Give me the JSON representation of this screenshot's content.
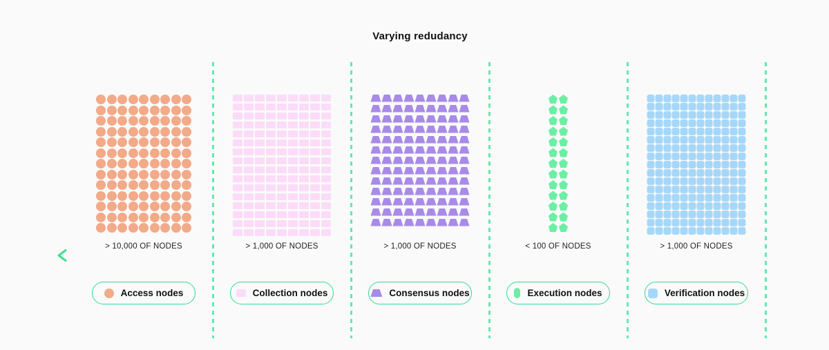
{
  "title": "Varying redudancy",
  "colors": {
    "background": "#FAFAFA",
    "separator": "#62E9AE",
    "pill_border": "#2EDC90",
    "arrow_start": "#3EE08F",
    "arrow_end": "#0A8A55",
    "access": "#F2AA89",
    "collection": "#FBDCF8",
    "consensus": "#A88BE8",
    "execution": "#6CEEA4",
    "verification": "#A6D7F8"
  },
  "groups": [
    {
      "id": "access",
      "legend_label": "Access nodes",
      "count_label": "> 10,000 OF NODES",
      "shape": "circle",
      "cols": 9,
      "rows": 13,
      "color": "#F2AA89",
      "legend_icon": "circle"
    },
    {
      "id": "collection",
      "legend_label": "Collection nodes",
      "count_label": "> 1,000 OF NODES",
      "shape": "rect",
      "cols": 9,
      "rows": 16,
      "color": "#FBDCF8",
      "legend_icon": "rect"
    },
    {
      "id": "consensus",
      "legend_label": "Consensus nodes",
      "count_label": "> 1,000 OF NODES",
      "shape": "trapezoid",
      "cols": 9,
      "rows": 13,
      "color": "#A88BE8",
      "legend_icon": "trapezoid"
    },
    {
      "id": "execution",
      "legend_label": "Execution nodes",
      "count_label": "< 100 OF NODES",
      "shape": "pentagon",
      "cols": 2,
      "rows": 13,
      "color": "#6CEEA4",
      "legend_icon": "capsule"
    },
    {
      "id": "verification",
      "legend_label": "Verification nodes",
      "count_label": "> 1,000 OF NODES",
      "shape": "square",
      "cols": 12,
      "rows": 17,
      "color": "#A6D7F8",
      "legend_icon": "square"
    }
  ]
}
